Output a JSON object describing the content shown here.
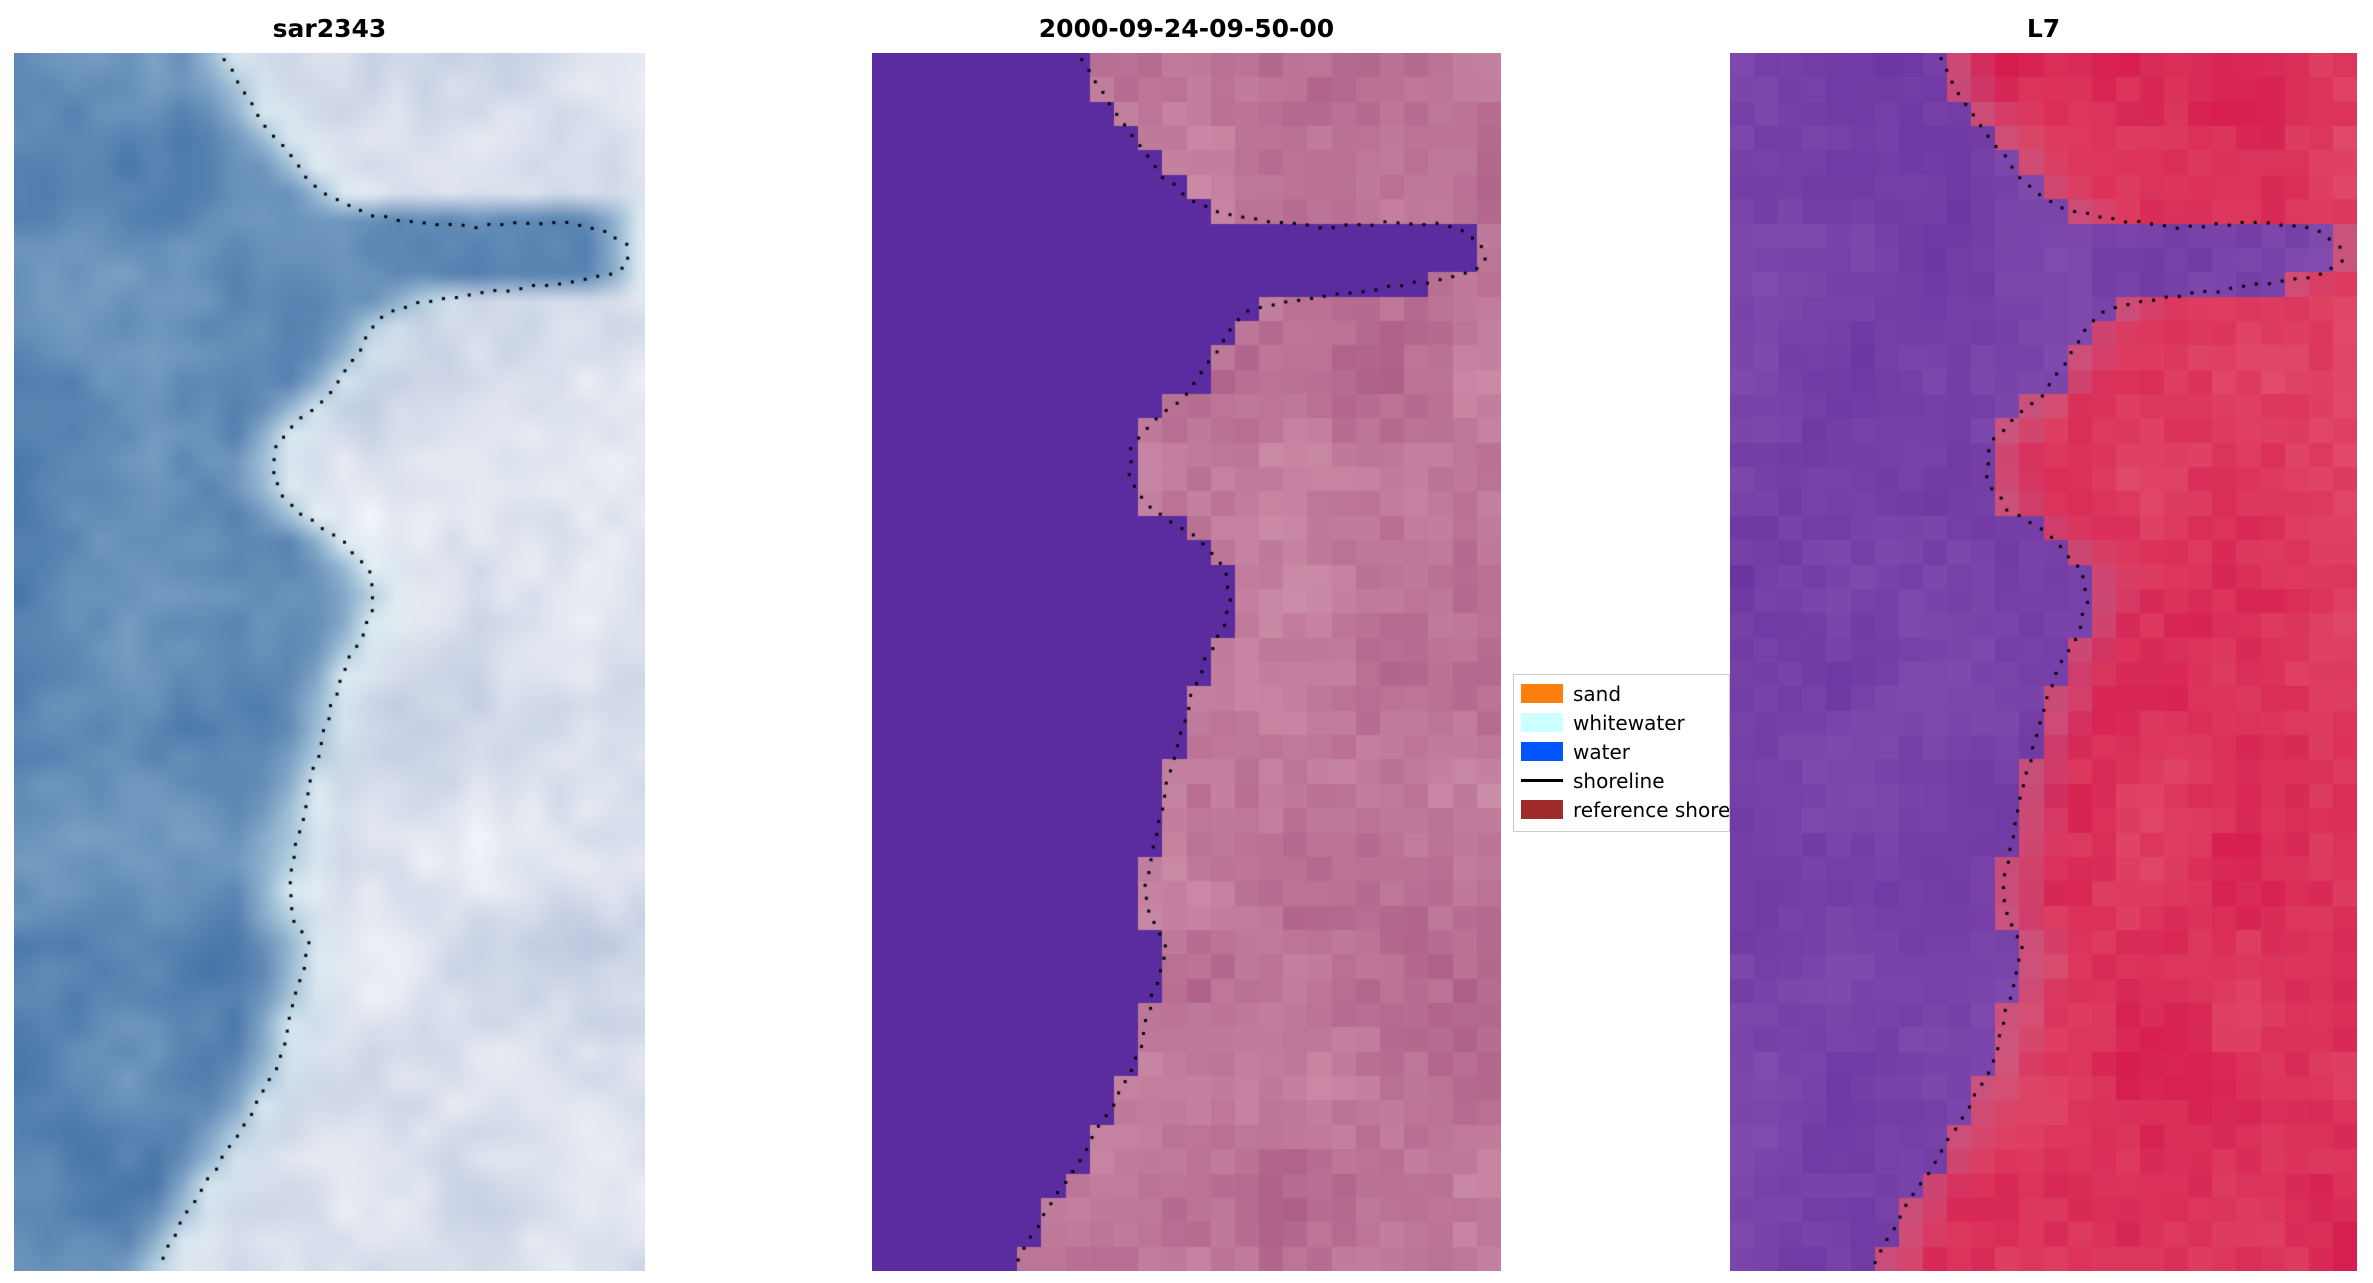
{
  "chart_data": {
    "type": "heatmap",
    "title": "",
    "panels": [
      {
        "title": "sar2343"
      },
      {
        "title": "2000-09-24-09-50-00"
      },
      {
        "title": "L7"
      }
    ],
    "legend": {
      "position": "center-right-between-panels",
      "items": [
        {
          "label": "sand",
          "type": "patch",
          "color": "#ff7f0e"
        },
        {
          "label": "whitewater",
          "type": "patch",
          "color": "#ccffff"
        },
        {
          "label": "water",
          "type": "patch",
          "color": "#0055ff"
        },
        {
          "label": "shoreline",
          "type": "line",
          "color": "#000000"
        },
        {
          "label": "reference shoreline",
          "type": "patch",
          "color": "#9e2a2a"
        }
      ]
    },
    "layout_hints": {
      "axes": "off",
      "grid": "off",
      "shoreline_style": "black dotted overlay on all three panels"
    },
    "water_boundary": [
      [
        0.0,
        0.335
      ],
      [
        0.03,
        0.36
      ],
      [
        0.06,
        0.4
      ],
      [
        0.09,
        0.445
      ],
      [
        0.115,
        0.49
      ],
      [
        0.132,
        0.545
      ],
      [
        0.14,
        0.97
      ],
      [
        0.185,
        0.97
      ],
      [
        0.198,
        0.72
      ],
      [
        0.212,
        0.6
      ],
      [
        0.23,
        0.565
      ],
      [
        0.27,
        0.52
      ],
      [
        0.3,
        0.455
      ],
      [
        0.325,
        0.412
      ],
      [
        0.352,
        0.412
      ],
      [
        0.378,
        0.448
      ],
      [
        0.402,
        0.52
      ],
      [
        0.428,
        0.566
      ],
      [
        0.452,
        0.572
      ],
      [
        0.476,
        0.556
      ],
      [
        0.5,
        0.528
      ],
      [
        0.53,
        0.507
      ],
      [
        0.56,
        0.49
      ],
      [
        0.6,
        0.47
      ],
      [
        0.64,
        0.452
      ],
      [
        0.68,
        0.436
      ],
      [
        0.708,
        0.44
      ],
      [
        0.733,
        0.468
      ],
      [
        0.757,
        0.455
      ],
      [
        0.78,
        0.443
      ],
      [
        0.81,
        0.43
      ],
      [
        0.84,
        0.41
      ],
      [
        0.87,
        0.376
      ],
      [
        0.9,
        0.34
      ],
      [
        0.93,
        0.302
      ],
      [
        0.96,
        0.266
      ],
      [
        1.0,
        0.228
      ]
    ],
    "shoreline_dots": [
      [
        0.005,
        0.335
      ],
      [
        0.02,
        0.35
      ],
      [
        0.04,
        0.375
      ],
      [
        0.06,
        0.4
      ],
      [
        0.08,
        0.43
      ],
      [
        0.1,
        0.46
      ],
      [
        0.118,
        0.5
      ],
      [
        0.13,
        0.545
      ],
      [
        0.136,
        0.6
      ],
      [
        0.14,
        0.66
      ],
      [
        0.143,
        0.72
      ],
      [
        0.141,
        0.78
      ],
      [
        0.139,
        0.84
      ],
      [
        0.141,
        0.9
      ],
      [
        0.147,
        0.945
      ],
      [
        0.158,
        0.97
      ],
      [
        0.17,
        0.975
      ],
      [
        0.18,
        0.955
      ],
      [
        0.186,
        0.91
      ],
      [
        0.19,
        0.85
      ],
      [
        0.195,
        0.78
      ],
      [
        0.2,
        0.71
      ],
      [
        0.206,
        0.64
      ],
      [
        0.214,
        0.59
      ],
      [
        0.23,
        0.563
      ],
      [
        0.255,
        0.535
      ],
      [
        0.28,
        0.5
      ],
      [
        0.3,
        0.455
      ],
      [
        0.322,
        0.414
      ],
      [
        0.35,
        0.41
      ],
      [
        0.375,
        0.443
      ],
      [
        0.398,
        0.515
      ],
      [
        0.425,
        0.563
      ],
      [
        0.45,
        0.57
      ],
      [
        0.475,
        0.556
      ],
      [
        0.5,
        0.528
      ],
      [
        0.53,
        0.507
      ],
      [
        0.56,
        0.49
      ],
      [
        0.6,
        0.47
      ],
      [
        0.64,
        0.452
      ],
      [
        0.68,
        0.436
      ],
      [
        0.708,
        0.44
      ],
      [
        0.733,
        0.468
      ],
      [
        0.757,
        0.455
      ],
      [
        0.78,
        0.443
      ],
      [
        0.81,
        0.43
      ],
      [
        0.84,
        0.41
      ],
      [
        0.87,
        0.376
      ],
      [
        0.9,
        0.34
      ],
      [
        0.93,
        0.302
      ],
      [
        0.96,
        0.266
      ],
      [
        0.995,
        0.23
      ]
    ]
  },
  "render": {
    "dot": {
      "color": "#000000",
      "size": 3,
      "spacing": 13,
      "jitter": 3
    },
    "panels": [
      {
        "grid": {
          "cols": 24,
          "rows": 46
        },
        "smooth": true,
        "seed": 11,
        "water": {
          "base": "#3f6ea4",
          "alt": "#8fb2cf",
          "noise": 0.85
        },
        "land": {
          "base": "#b7c4dc",
          "alt": "#ffffff",
          "noise": 0.9
        },
        "shore_tint": {
          "color": "#ddf1f5",
          "range": 0.075,
          "strength": 0.7,
          "both": true
        }
      },
      {
        "grid": {
          "cols": 26,
          "rows": 50
        },
        "smooth": false,
        "seed": 23,
        "water": {
          "base": "#5a2ca0",
          "alt": "#5a2ca0",
          "noise": 0
        },
        "land": {
          "base": "#ac5d86",
          "alt": "#d499b0",
          "noise": 0.85
        },
        "shore_tint": {
          "color": "#c88ea8",
          "range": 0.05,
          "strength": 0.35,
          "both": false
        }
      },
      {
        "grid": {
          "cols": 26,
          "rows": 50
        },
        "smooth": false,
        "seed": 37,
        "water": {
          "base": "#6c34a0",
          "alt": "#8a55b4",
          "noise": 0.8
        },
        "land": {
          "base": "#d4154b",
          "alt": "#e45870",
          "noise": 0.8
        },
        "shore_tint": {
          "color": "#b8709c",
          "range": 0.085,
          "strength": 0.55,
          "both": false
        }
      }
    ]
  }
}
